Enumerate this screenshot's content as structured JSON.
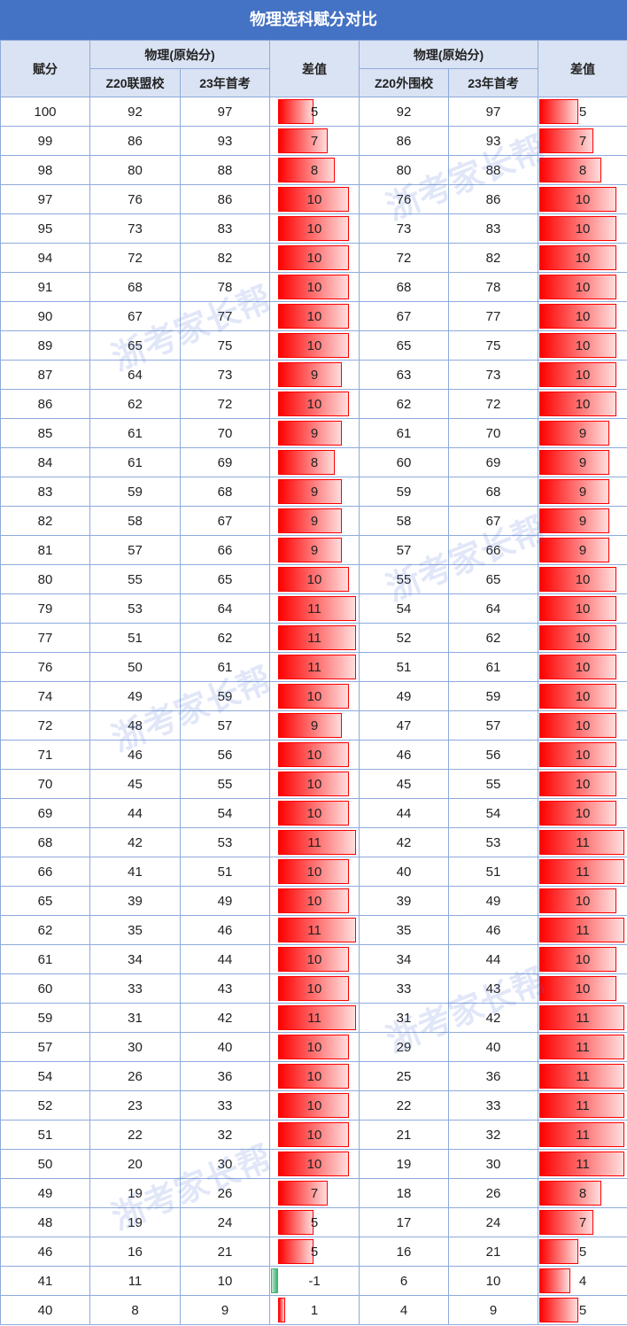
{
  "title": "物理选科赋分对比",
  "watermark": "浙考家长帮",
  "table": {
    "header": {
      "score": "赋分",
      "group_a": "物理(原始分)",
      "diff_a": "差值",
      "group_b": "物理(原始分)",
      "diff_b": "差值",
      "sub": [
        "Z20联盟校",
        "23年首考",
        "Z20外围校",
        "23年首考"
      ]
    },
    "bar_color": "#ff0000",
    "negative_bar_color": "#3cb371",
    "rows": [
      [
        100,
        92,
        97,
        5,
        92,
        97,
        5
      ],
      [
        99,
        86,
        93,
        7,
        86,
        93,
        7
      ],
      [
        98,
        80,
        88,
        8,
        80,
        88,
        8
      ],
      [
        97,
        76,
        86,
        10,
        76,
        86,
        10
      ],
      [
        95,
        73,
        83,
        10,
        73,
        83,
        10
      ],
      [
        94,
        72,
        82,
        10,
        72,
        82,
        10
      ],
      [
        91,
        68,
        78,
        10,
        68,
        78,
        10
      ],
      [
        90,
        67,
        77,
        10,
        67,
        77,
        10
      ],
      [
        89,
        65,
        75,
        10,
        65,
        75,
        10
      ],
      [
        87,
        64,
        73,
        9,
        63,
        73,
        10
      ],
      [
        86,
        62,
        72,
        10,
        62,
        72,
        10
      ],
      [
        85,
        61,
        70,
        9,
        61,
        70,
        9
      ],
      [
        84,
        61,
        69,
        8,
        60,
        69,
        9
      ],
      [
        83,
        59,
        68,
        9,
        59,
        68,
        9
      ],
      [
        82,
        58,
        67,
        9,
        58,
        67,
        9
      ],
      [
        81,
        57,
        66,
        9,
        57,
        66,
        9
      ],
      [
        80,
        55,
        65,
        10,
        55,
        65,
        10
      ],
      [
        79,
        53,
        64,
        11,
        54,
        64,
        10
      ],
      [
        77,
        51,
        62,
        11,
        52,
        62,
        10
      ],
      [
        76,
        50,
        61,
        11,
        51,
        61,
        10
      ],
      [
        74,
        49,
        59,
        10,
        49,
        59,
        10
      ],
      [
        72,
        48,
        57,
        9,
        47,
        57,
        10
      ],
      [
        71,
        46,
        56,
        10,
        46,
        56,
        10
      ],
      [
        70,
        45,
        55,
        10,
        45,
        55,
        10
      ],
      [
        69,
        44,
        54,
        10,
        44,
        54,
        10
      ],
      [
        68,
        42,
        53,
        11,
        42,
        53,
        11
      ],
      [
        66,
        41,
        51,
        10,
        40,
        51,
        11
      ],
      [
        65,
        39,
        49,
        10,
        39,
        49,
        10
      ],
      [
        62,
        35,
        46,
        11,
        35,
        46,
        11
      ],
      [
        61,
        34,
        44,
        10,
        34,
        44,
        10
      ],
      [
        60,
        33,
        43,
        10,
        33,
        43,
        10
      ],
      [
        59,
        31,
        42,
        11,
        31,
        42,
        11
      ],
      [
        57,
        30,
        40,
        10,
        29,
        40,
        11
      ],
      [
        54,
        26,
        36,
        10,
        25,
        36,
        11
      ],
      [
        52,
        23,
        33,
        10,
        22,
        33,
        11
      ],
      [
        51,
        22,
        32,
        10,
        21,
        32,
        11
      ],
      [
        50,
        20,
        30,
        10,
        19,
        30,
        11
      ],
      [
        49,
        19,
        26,
        7,
        18,
        26,
        8
      ],
      [
        48,
        19,
        24,
        5,
        17,
        24,
        7
      ],
      [
        46,
        16,
        21,
        5,
        16,
        21,
        5
      ],
      [
        41,
        11,
        10,
        -1,
        6,
        10,
        4
      ],
      [
        40,
        8,
        9,
        1,
        4,
        9,
        5
      ]
    ]
  }
}
